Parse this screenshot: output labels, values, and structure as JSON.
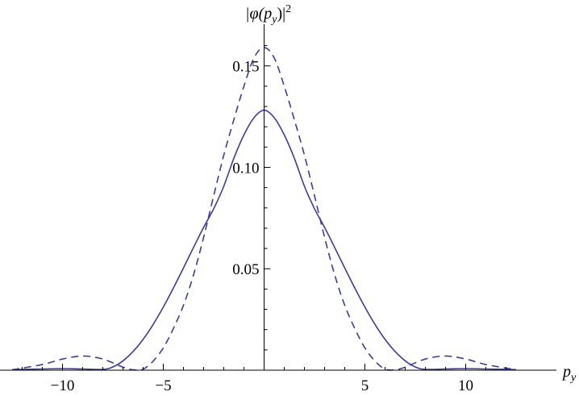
{
  "chart_data": {
    "type": "line",
    "title": "",
    "xlabel": "p",
    "xlabel_sub": "y",
    "ylabel_parts": {
      "open": "|φ(",
      "p": "p",
      "sub": "y",
      "close": ")|",
      "sup": "2"
    },
    "xlim": [
      -13.1,
      14.5
    ],
    "ylim": [
      0,
      0.165
    ],
    "x_ticks": [
      -10,
      -5,
      5,
      10
    ],
    "x_tick_labels": [
      "−10",
      "−5",
      "5",
      "10"
    ],
    "y_ticks": [
      0.05,
      0.1,
      0.15
    ],
    "y_tick_labels": [
      "0.05",
      "0.10",
      "0.15"
    ],
    "grid": false,
    "legend": "none",
    "color": "#3d3d99",
    "series": [
      {
        "style": "solid",
        "x": [
          -12.5,
          -11,
          -10,
          -9,
          -8,
          -7.5,
          -7,
          -6.5,
          -6,
          -5.5,
          -5,
          -4.5,
          -4,
          -3.5,
          -3,
          -2.5,
          -2,
          -1.5,
          -1,
          -0.5,
          0,
          0.5,
          1,
          1.5,
          2,
          2.5,
          3,
          3.5,
          4,
          4.5,
          5,
          5.5,
          6,
          6.5,
          7,
          7.5,
          8,
          9,
          10,
          11,
          12.5
        ],
        "y": [
          0.0003,
          0.0006,
          0.0008,
          0.0006,
          0.0004,
          0.0016,
          0.0046,
          0.0092,
          0.0152,
          0.0226,
          0.0311,
          0.0405,
          0.0504,
          0.0605,
          0.0704,
          0.0796,
          0.0907,
          0.1045,
          0.116,
          0.1245,
          0.1282,
          0.1245,
          0.116,
          0.1045,
          0.0907,
          0.0796,
          0.0704,
          0.0605,
          0.0504,
          0.0405,
          0.0311,
          0.0226,
          0.0152,
          0.0092,
          0.0046,
          0.0016,
          0.0004,
          0.0006,
          0.0008,
          0.0006,
          0.0003
        ]
      },
      {
        "style": "dashed",
        "x": [
          -12.5,
          -11,
          -10,
          -9,
          -8,
          -7,
          -6.5,
          -6,
          -5.5,
          -5,
          -4.5,
          -4,
          -3.5,
          -3,
          -2.5,
          -2,
          -1.5,
          -1,
          -0.5,
          0,
          0.5,
          1,
          1.5,
          2,
          2.5,
          3,
          3.5,
          4,
          4.5,
          5,
          5.5,
          6,
          6.5,
          7,
          8,
          9,
          10,
          11,
          12.5
        ],
        "y": [
          0.0002,
          0.0028,
          0.0055,
          0.007,
          0.0055,
          0.0015,
          0.0002,
          0.0005,
          0.0045,
          0.011,
          0.0205,
          0.032,
          0.047,
          0.0655,
          0.086,
          0.106,
          0.1235,
          0.14,
          0.154,
          0.159,
          0.154,
          0.14,
          0.1235,
          0.106,
          0.086,
          0.0655,
          0.047,
          0.032,
          0.0205,
          0.011,
          0.0045,
          0.0005,
          0.0002,
          0.0015,
          0.0055,
          0.007,
          0.0055,
          0.0028,
          0.0002
        ]
      }
    ]
  }
}
